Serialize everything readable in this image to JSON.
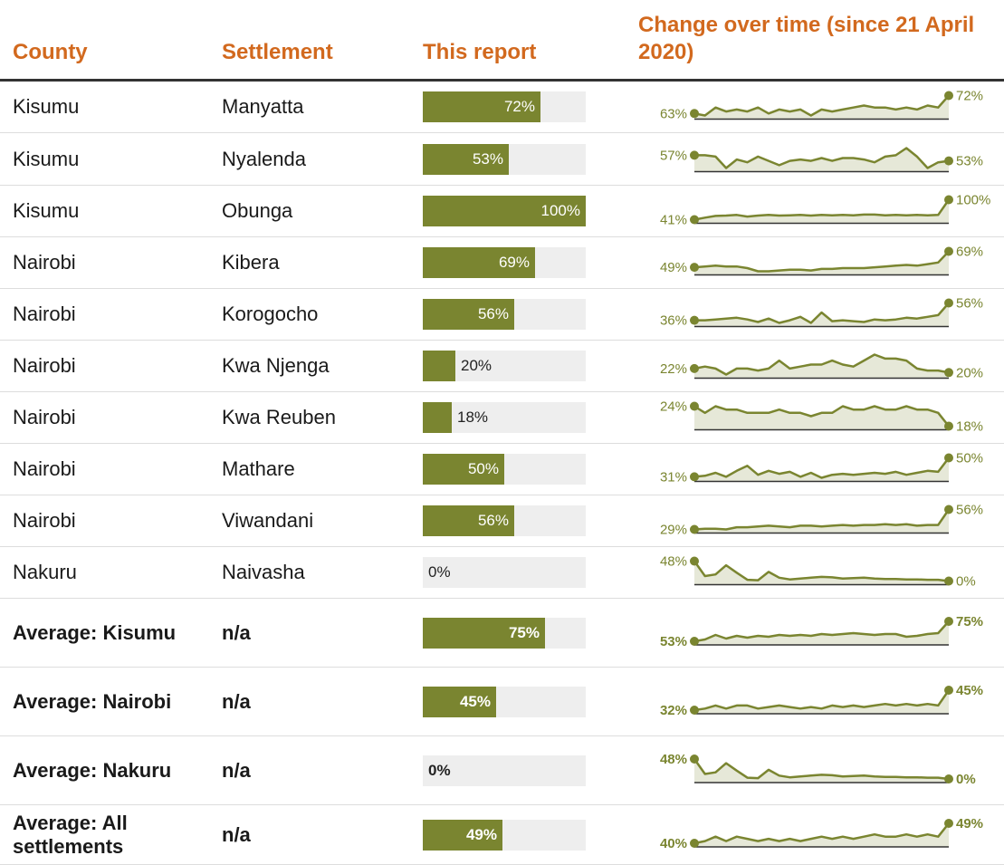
{
  "header": {
    "county": "County",
    "settlement": "Settlement",
    "report": "This report",
    "change": "Change over time (since 21 April 2020)"
  },
  "colors": {
    "header_text": "#d2691e",
    "bar_fill": "#7a8530",
    "bar_track": "#eeeeee",
    "spark_line": "#7a8530",
    "spark_area": "#e6e8d8",
    "baseline": "#333333"
  },
  "chart_data": {
    "type": "table",
    "columns": [
      "County",
      "Settlement",
      "This report",
      "Change over time (since 21 April 2020)"
    ],
    "rows": [
      {
        "county": "Kisumu",
        "settlement": "Manyatta",
        "value": 72,
        "label": "72%",
        "start": "63%",
        "end": "72%",
        "average": false,
        "trend": [
          63,
          62,
          66,
          64,
          65,
          64,
          66,
          63,
          65,
          64,
          65,
          62,
          65,
          64,
          65,
          66,
          67,
          66,
          66,
          65,
          66,
          65,
          67,
          66,
          72
        ]
      },
      {
        "county": "Kisumu",
        "settlement": "Nyalenda",
        "value": 53,
        "label": "53%",
        "start": "57%",
        "end": "53%",
        "average": false,
        "trend": [
          57,
          57,
          56,
          48,
          54,
          52,
          56,
          53,
          50,
          53,
          54,
          53,
          55,
          53,
          55,
          55,
          54,
          52,
          56,
          57,
          62,
          56,
          48,
          52,
          53
        ]
      },
      {
        "county": "Kisumu",
        "settlement": "Obunga",
        "value": 100,
        "label": "100%",
        "start": "41%",
        "end": "100%",
        "average": false,
        "trend": [
          41,
          47,
          52,
          53,
          55,
          50,
          53,
          55,
          53,
          54,
          55,
          53,
          55,
          54,
          55,
          54,
          56,
          56,
          54,
          55,
          54,
          55,
          54,
          55,
          100
        ]
      },
      {
        "county": "Nairobi",
        "settlement": "Kibera",
        "value": 69,
        "label": "69%",
        "start": "49%",
        "end": "69%",
        "average": false,
        "trend": [
          49,
          50,
          51,
          50,
          50,
          48,
          44,
          44,
          45,
          46,
          46,
          45,
          47,
          47,
          48,
          48,
          48,
          49,
          50,
          51,
          52,
          51,
          53,
          55,
          69
        ]
      },
      {
        "county": "Nairobi",
        "settlement": "Korogocho",
        "value": 56,
        "label": "56%",
        "start": "36%",
        "end": "56%",
        "average": false,
        "trend": [
          36,
          36,
          37,
          38,
          39,
          37,
          34,
          38,
          33,
          36,
          40,
          33,
          45,
          35,
          36,
          35,
          34,
          37,
          36,
          37,
          39,
          38,
          40,
          42,
          56
        ]
      },
      {
        "county": "Nairobi",
        "settlement": "Kwa Njenga",
        "value": 20,
        "label": "20%",
        "start": "22%",
        "end": "20%",
        "average": false,
        "trend": [
          22,
          23,
          22,
          19,
          22,
          22,
          21,
          22,
          26,
          22,
          23,
          24,
          24,
          26,
          24,
          23,
          26,
          29,
          27,
          27,
          26,
          22,
          21,
          21,
          20
        ]
      },
      {
        "county": "Nairobi",
        "settlement": "Kwa Reuben",
        "value": 18,
        "label": "18%",
        "start": "24%",
        "end": "18%",
        "average": false,
        "trend": [
          24,
          22,
          24,
          23,
          23,
          22,
          22,
          22,
          23,
          22,
          22,
          21,
          22,
          22,
          24,
          23,
          23,
          24,
          23,
          23,
          24,
          23,
          23,
          22,
          18
        ]
      },
      {
        "county": "Nairobi",
        "settlement": "Mathare",
        "value": 50,
        "label": "50%",
        "start": "31%",
        "end": "50%",
        "average": false,
        "trend": [
          31,
          32,
          35,
          31,
          37,
          42,
          33,
          37,
          34,
          36,
          31,
          35,
          30,
          33,
          34,
          33,
          34,
          35,
          34,
          36,
          33,
          35,
          37,
          36,
          50
        ]
      },
      {
        "county": "Nairobi",
        "settlement": "Viwandani",
        "value": 56,
        "label": "56%",
        "start": "29%",
        "end": "56%",
        "average": false,
        "trend": [
          29,
          30,
          30,
          29,
          32,
          32,
          33,
          34,
          33,
          32,
          34,
          34,
          33,
          34,
          35,
          34,
          35,
          35,
          36,
          35,
          36,
          34,
          35,
          35,
          56
        ]
      },
      {
        "county": "Nakuru",
        "settlement": "Naivasha",
        "value": 0,
        "label": "0%",
        "start": "48%",
        "end": "0%",
        "average": false,
        "trend": [
          48,
          12,
          16,
          38,
          20,
          3,
          2,
          22,
          8,
          4,
          6,
          8,
          10,
          9,
          6,
          7,
          8,
          6,
          5,
          5,
          4,
          4,
          3,
          3,
          0
        ]
      },
      {
        "county": "Average: Kisumu",
        "settlement": "n/a",
        "value": 75,
        "label": "75%",
        "start": "53%",
        "end": "75%",
        "average": true,
        "trend": [
          53,
          55,
          60,
          56,
          59,
          57,
          59,
          58,
          60,
          59,
          60,
          59,
          61,
          60,
          61,
          62,
          61,
          60,
          61,
          61,
          58,
          59,
          61,
          62,
          75
        ]
      },
      {
        "county": "Average: Nairobi",
        "settlement": "n/a",
        "value": 45,
        "label": "45%",
        "start": "32%",
        "end": "45%",
        "average": true,
        "trend": [
          32,
          33,
          35,
          33,
          35,
          35,
          33,
          34,
          35,
          34,
          33,
          34,
          33,
          35,
          34,
          35,
          34,
          35,
          36,
          35,
          36,
          35,
          36,
          35,
          45
        ]
      },
      {
        "county": "Average: Nakuru",
        "settlement": "n/a",
        "value": 0,
        "label": "0%",
        "start": "48%",
        "end": "0%",
        "average": true,
        "trend": [
          48,
          12,
          16,
          38,
          20,
          3,
          2,
          22,
          8,
          4,
          6,
          8,
          10,
          9,
          6,
          7,
          8,
          6,
          5,
          5,
          4,
          4,
          3,
          3,
          0
        ]
      },
      {
        "county": "Average: All settlements",
        "settlement": "n/a",
        "value": 49,
        "label": "49%",
        "start": "40%",
        "end": "49%",
        "average": true,
        "trend": [
          40,
          41,
          43,
          41,
          43,
          42,
          41,
          42,
          41,
          42,
          41,
          42,
          43,
          42,
          43,
          42,
          43,
          44,
          43,
          43,
          44,
          43,
          44,
          43,
          49
        ]
      }
    ]
  }
}
